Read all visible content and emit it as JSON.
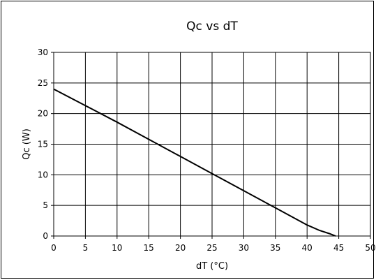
{
  "chart_data": {
    "type": "line",
    "title": "Qc vs dT",
    "xlabel": "dT (°C)",
    "ylabel": "Qc (W)",
    "xlim": [
      0,
      50
    ],
    "ylim": [
      0,
      30
    ],
    "x_ticks": [
      0,
      5,
      10,
      15,
      20,
      25,
      30,
      35,
      40,
      45,
      50
    ],
    "y_ticks": [
      0,
      5,
      10,
      15,
      20,
      25,
      30
    ],
    "grid": true,
    "legend": "none",
    "series": [
      {
        "color": "#000000",
        "x": [
          0,
          5,
          10,
          15,
          20,
          25,
          30,
          35,
          40,
          42,
          43.5,
          44.5
        ],
        "y": [
          24,
          21.3,
          18.6,
          15.8,
          13.0,
          10.2,
          7.4,
          4.6,
          1.8,
          0.9,
          0.4,
          0
        ]
      }
    ]
  }
}
